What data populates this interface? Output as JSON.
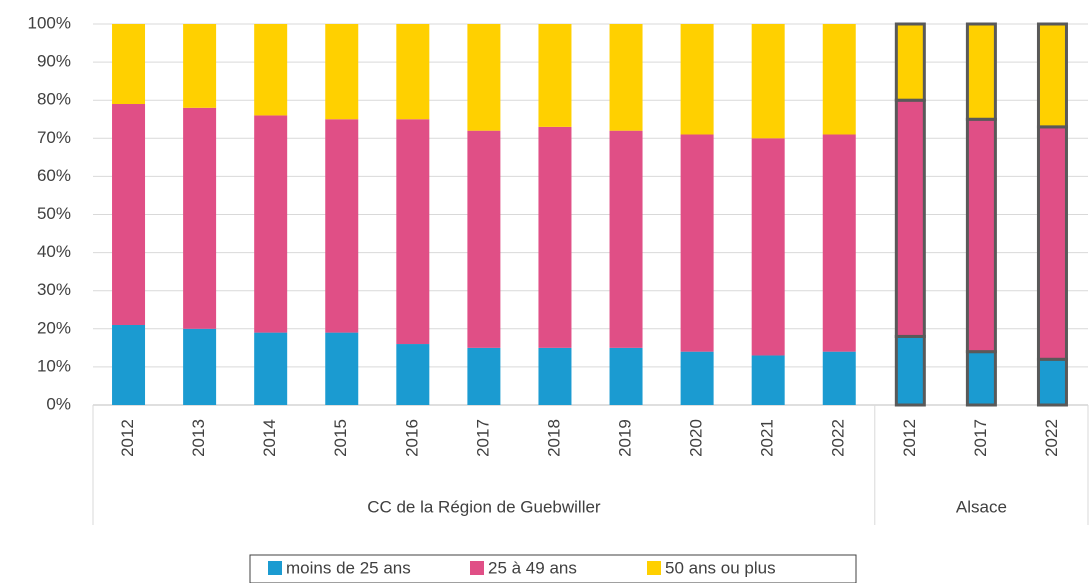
{
  "chart_data": {
    "type": "stacked_bar",
    "groups": [
      {
        "name": "CC de la Région de Guebwiller",
        "categories": [
          "2012",
          "2013",
          "2014",
          "2015",
          "2016",
          "2017",
          "2018",
          "2019",
          "2020",
          "2021",
          "2022"
        ]
      },
      {
        "name": "Alsace",
        "categories": [
          "2012",
          "2017",
          "2022"
        ],
        "outline": "#595959"
      }
    ],
    "series": [
      {
        "name": "moins de 25 ans",
        "color": "#1b9bd1",
        "values": [
          21,
          20,
          19,
          19,
          16,
          15,
          15,
          15,
          14,
          13,
          14,
          18,
          14,
          12
        ]
      },
      {
        "name": "25 à 49 ans",
        "color": "#e04f86",
        "values": [
          58,
          58,
          57,
          56,
          59,
          57,
          58,
          57,
          57,
          57,
          57,
          62,
          61,
          61
        ]
      },
      {
        "name": "50 ans ou plus",
        "color": "#ffd000",
        "values": [
          21,
          22,
          24,
          25,
          25,
          28,
          27,
          28,
          29,
          30,
          29,
          20,
          25,
          27
        ]
      }
    ],
    "ylim": [
      0,
      100
    ],
    "yticks": [
      {
        "value": 0,
        "label": "0%"
      },
      {
        "value": 10,
        "label": "10%"
      },
      {
        "value": 20,
        "label": "20%"
      },
      {
        "value": 30,
        "label": "30%"
      },
      {
        "value": 40,
        "label": "40%"
      },
      {
        "value": 50,
        "label": "50%"
      },
      {
        "value": 60,
        "label": "60%"
      },
      {
        "value": 70,
        "label": "70%"
      },
      {
        "value": 80,
        "label": "80%"
      },
      {
        "value": 90,
        "label": "90%"
      },
      {
        "value": 100,
        "label": "100%"
      }
    ],
    "grid": true,
    "legend": "bottom"
  }
}
